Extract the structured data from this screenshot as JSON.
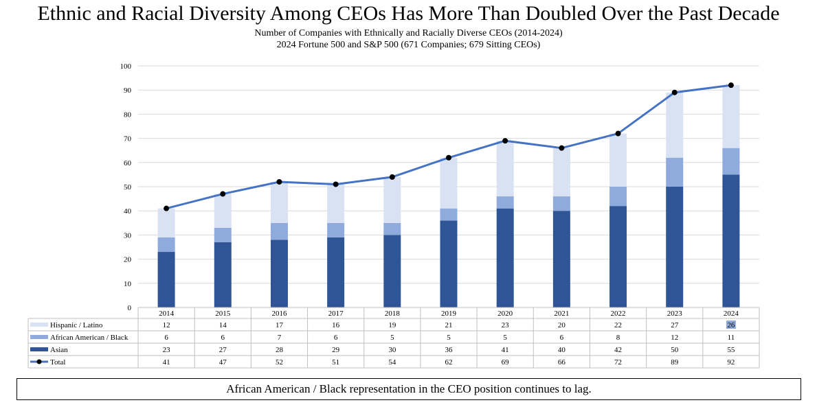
{
  "page": {
    "title": "Ethnic and Racial Diversity Among CEOs Has More Than Doubled Over the Past Decade",
    "subtitle": "Number of Companies with Ethnically and Racially Diverse CEOs (2014-2024)",
    "subtitle2": "2024 Fortune 500 and S&P 500 (671 Companies; 679 Sitting CEOs)",
    "footnote": "African American / Black representation in the CEO position continues to lag."
  },
  "colors": {
    "hispanic": "#D9E2F3",
    "black": "#8FAADC",
    "asian": "#2F5597",
    "total_line": "#4472C4",
    "total_marker": "#000000",
    "grid": "#D9D9D9",
    "highlight": "#8FAADC"
  },
  "chart_data": {
    "type": "bar",
    "stacked": true,
    "categories": [
      "2014",
      "2015",
      "2016",
      "2017",
      "2018",
      "2019",
      "2020",
      "2021",
      "2022",
      "2023",
      "2024"
    ],
    "series": [
      {
        "name": "Asian",
        "values": [
          23,
          27,
          28,
          29,
          30,
          36,
          41,
          40,
          42,
          50,
          55
        ]
      },
      {
        "name": "African American / Black",
        "values": [
          6,
          6,
          7,
          6,
          5,
          5,
          5,
          6,
          8,
          12,
          11
        ]
      },
      {
        "name": "Hispanic / Latino",
        "values": [
          12,
          14,
          17,
          16,
          19,
          21,
          23,
          20,
          22,
          27,
          26
        ]
      }
    ],
    "line_series": {
      "name": "Total",
      "values": [
        41,
        47,
        52,
        51,
        54,
        62,
        69,
        66,
        72,
        89,
        92
      ]
    },
    "yticks": [
      "0",
      "10",
      "20",
      "30",
      "40",
      "50",
      "60",
      "70",
      "80",
      "90",
      "100"
    ],
    "ylim": [
      0,
      100
    ],
    "ystep": 10,
    "grid": true,
    "data_table": true,
    "table_rows": [
      "Hispanic / Latino",
      "African American / Black",
      "Asian",
      "Total"
    ],
    "highlighted_cell": {
      "series": "Hispanic / Latino",
      "category": "2024"
    }
  }
}
